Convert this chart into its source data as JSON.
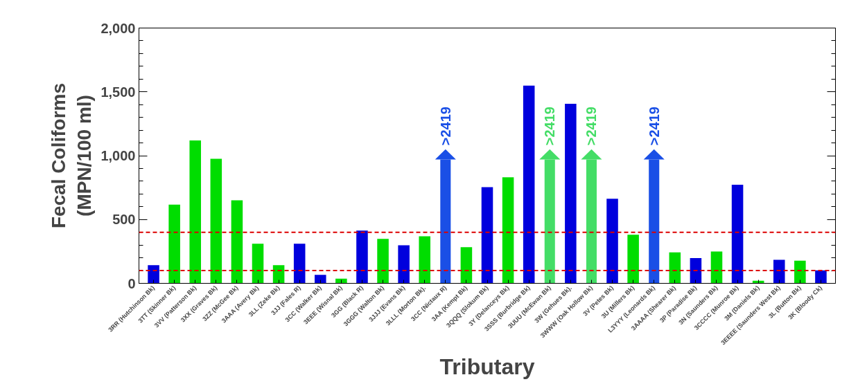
{
  "chart_data": {
    "type": "bar",
    "xlabel": "Tributary",
    "ylabel": "Fecal Coliforms\n(MPN/100 ml)",
    "categories": [
      "3RR (Hutchinson Bk)",
      "3TT (Skinner Bk)",
      "3VV (Patterson Bk)",
      "3XX (Graves Bk)",
      "3ZZ (McGee Bk)",
      "3AAA (Avery Bk)",
      "3LL (Zeke Bk)",
      "3JJ (Fales R)",
      "3CC (Walker Bk)",
      "3EEE (Wisnal Bk)",
      "3GG (Black R)",
      "3GGG (Walton Bk)",
      "3JJJ (Evans Bk)",
      "3LLL (Morton Bk).",
      "3CC (Nictaux R)",
      "3AA (Kempt Bk)",
      "3QQQ (Slokum Bk)",
      "3Y (Delanceys Bk)",
      "3SSS (Burbridge Bk)",
      "3UUU (McEwan Bk)",
      "3W (Gehues Bk).",
      "3WWW (Oak Hollow Bk)",
      "3V (Petes Bk)",
      "3U (Millers Bk)",
      "L3YYY (Leonards Bk)",
      "3AAAA (Shearer Bk)",
      "3P (Paradise Bk)",
      "3N (Saunders Bk)",
      "3CCCC (Munroe Bk)",
      "3M (Daniels Bk)",
      "3EEEE (Saunders West Bk)",
      "3L (Button Bk)",
      "3K (Bloody Ck)"
    ],
    "values": [
      142,
      617,
      1119,
      976,
      650,
      310,
      142,
      310,
      67,
      36,
      413,
      348,
      298,
      368,
      970,
      283,
      753,
      830,
      1549,
      970,
      1407,
      970,
      662,
      381,
      970,
      243,
      198,
      249,
      773,
      20,
      184,
      178,
      101
    ],
    "value_labels": [
      null,
      null,
      null,
      null,
      null,
      null,
      null,
      null,
      null,
      null,
      null,
      null,
      null,
      null,
      ">2419",
      null,
      null,
      null,
      null,
      ">2419",
      null,
      ">2419",
      null,
      null,
      ">2419",
      null,
      null,
      null,
      null,
      null,
      null,
      null,
      null
    ],
    "colors": [
      "#0000dd",
      "#00dd00",
      "#00dd00",
      "#00dd00",
      "#00dd00",
      "#00dd00",
      "#00dd00",
      "#0000dd",
      "#0000dd",
      "#00dd00",
      "#0000dd",
      "#00dd00",
      "#0000dd",
      "#00dd00",
      "#1a4fe6",
      "#00dd00",
      "#0000dd",
      "#00dd00",
      "#0000dd",
      "#44dd66",
      "#0000dd",
      "#44dd66",
      "#0000dd",
      "#00dd00",
      "#1a4fe6",
      "#00dd00",
      "#0000dd",
      "#00dd00",
      "#0000dd",
      "#00dd00",
      "#0000dd",
      "#00dd00",
      "#0000dd"
    ],
    "ylim": [
      0,
      2000
    ],
    "yticks": [
      0,
      {
        "value": 500,
        "label": "500"
      },
      {
        "value": 1000,
        "label": "1,000"
      },
      {
        "value": 1500,
        "label": "1,500"
      },
      {
        "value": 2000,
        "label": "2,000"
      }
    ],
    "ref_lines": [
      {
        "axis": "y",
        "value": 400,
        "color": "#dd0000",
        "line_style": "dashed"
      },
      {
        "axis": "y",
        "value": 100,
        "color": "#dd0000",
        "line_style": "dashed"
      }
    ],
    "grid": false
  }
}
